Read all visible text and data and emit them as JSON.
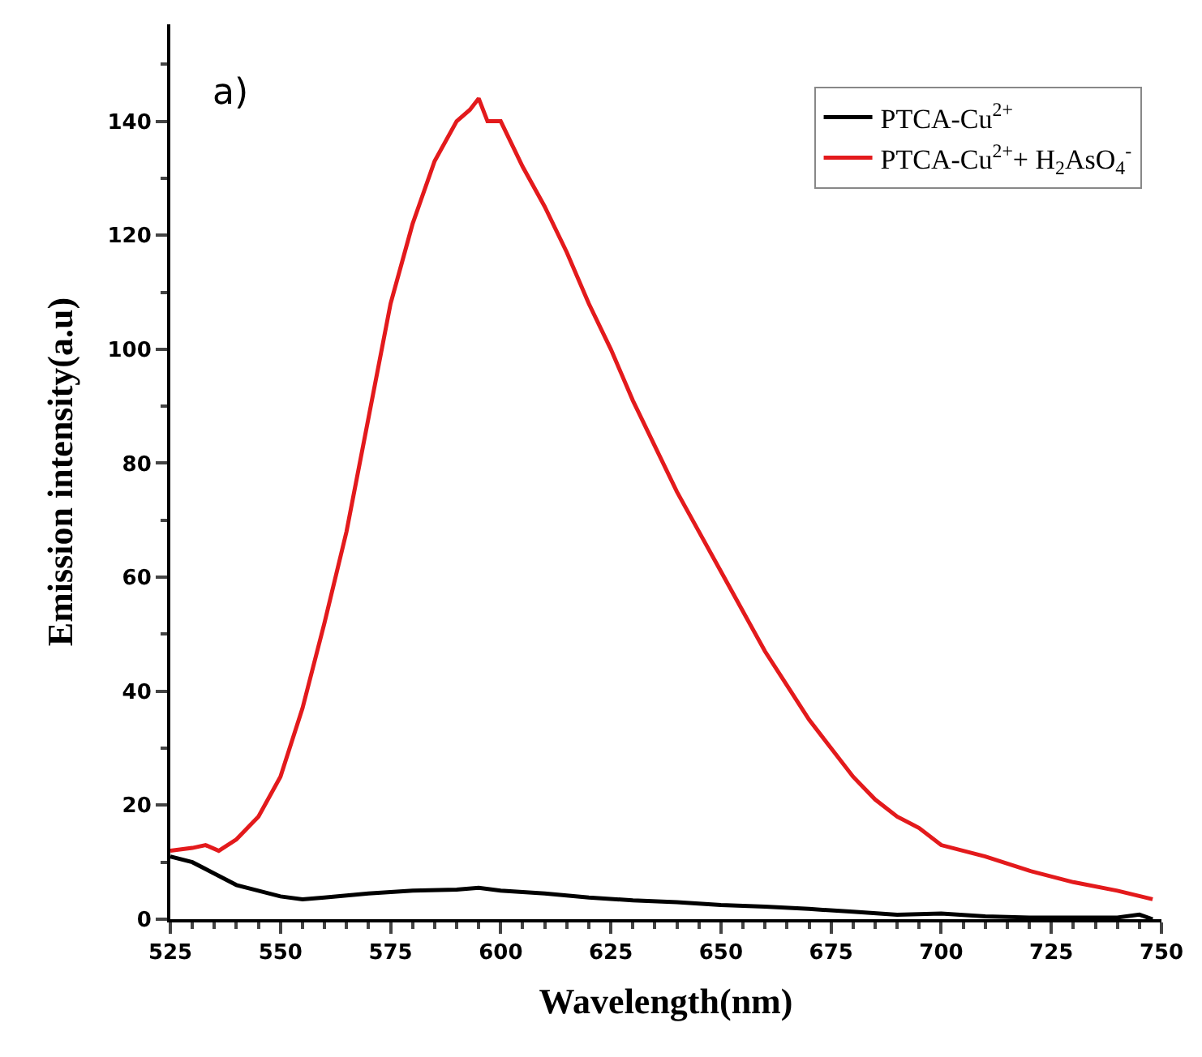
{
  "chart_data": {
    "type": "line",
    "xlabel": "Wavelength(nm)",
    "ylabel": "Emission intensity(a.u)",
    "annotations": [
      "a)"
    ],
    "xlim": [
      525,
      750
    ],
    "xticks": [
      525,
      550,
      575,
      600,
      625,
      650,
      675,
      700,
      725,
      750
    ],
    "ylim": [
      0,
      157
    ],
    "yticks": [
      0,
      20,
      40,
      60,
      80,
      100,
      120,
      140
    ],
    "legend": "top right",
    "marker": "none",
    "line_style": "solid",
    "series": [
      {
        "name": "PTCA-Cu$^{2+}$",
        "color": "#000000",
        "x": [
          525,
          530,
          535,
          540,
          545,
          550,
          555,
          560,
          570,
          580,
          590,
          595,
          600,
          610,
          620,
          630,
          640,
          650,
          660,
          670,
          680,
          690,
          700,
          710,
          720,
          730,
          740,
          745,
          748
        ],
        "values": [
          11,
          10,
          8,
          6,
          5,
          4,
          3.5,
          3.8,
          4.5,
          5,
          5.2,
          5.5,
          5,
          4.5,
          3.8,
          3.3,
          3,
          2.5,
          2.2,
          1.8,
          1.3,
          0.8,
          1,
          0.5,
          0.3,
          0.3,
          0.3,
          0.8,
          0
        ]
      },
      {
        "name": "PTCA-Cu$^{2+}$+ H$_{2}$AsO$_{4}$$^{-}$",
        "color": "#e31a1c",
        "x": [
          525,
          530,
          533,
          536,
          540,
          545,
          550,
          555,
          560,
          565,
          570,
          575,
          580,
          585,
          590,
          593,
          595,
          597,
          600,
          605,
          610,
          615,
          620,
          625,
          630,
          635,
          640,
          645,
          650,
          655,
          660,
          665,
          670,
          675,
          680,
          685,
          690,
          695,
          700,
          710,
          720,
          730,
          740,
          748
        ],
        "values": [
          12,
          12.5,
          13,
          12,
          14,
          18,
          25,
          37,
          52,
          68,
          88,
          108,
          122,
          133,
          140,
          142,
          144,
          140,
          140,
          132,
          125,
          117,
          108,
          100,
          91,
          83,
          75,
          68,
          61,
          54,
          47,
          41,
          35,
          30,
          25,
          21,
          18,
          16,
          13,
          11,
          8.5,
          6.5,
          5,
          3.5
        ]
      }
    ]
  }
}
